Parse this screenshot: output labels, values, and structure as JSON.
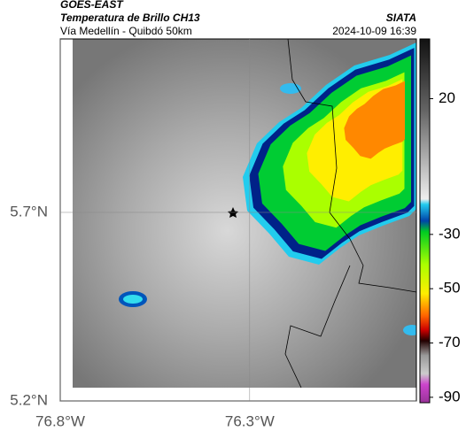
{
  "header": {
    "satellite": "GOES-EAST",
    "product": "Temperatura de Brillo CH13",
    "route": "Vía Medellín - Quibdó 50km",
    "source": "SIATA",
    "datetime": "2024-10-09 16:39"
  },
  "map": {
    "lonlim": [
      -76.8,
      -75.86
    ],
    "latlim": [
      5.2,
      6.16
    ],
    "lon_ticks": [
      {
        "value": -76.8,
        "label": "76.8°W"
      },
      {
        "value": -76.3,
        "label": "76.3°W"
      }
    ],
    "lat_ticks": [
      {
        "value": 5.7,
        "label": "5.7°N"
      },
      {
        "value": 5.2,
        "label": "5.2°N"
      }
    ],
    "grid": true,
    "colorbar": {
      "lim": [
        -92,
        42
      ],
      "ticks": [
        20,
        -30,
        -50,
        -70,
        -90
      ]
    }
  }
}
